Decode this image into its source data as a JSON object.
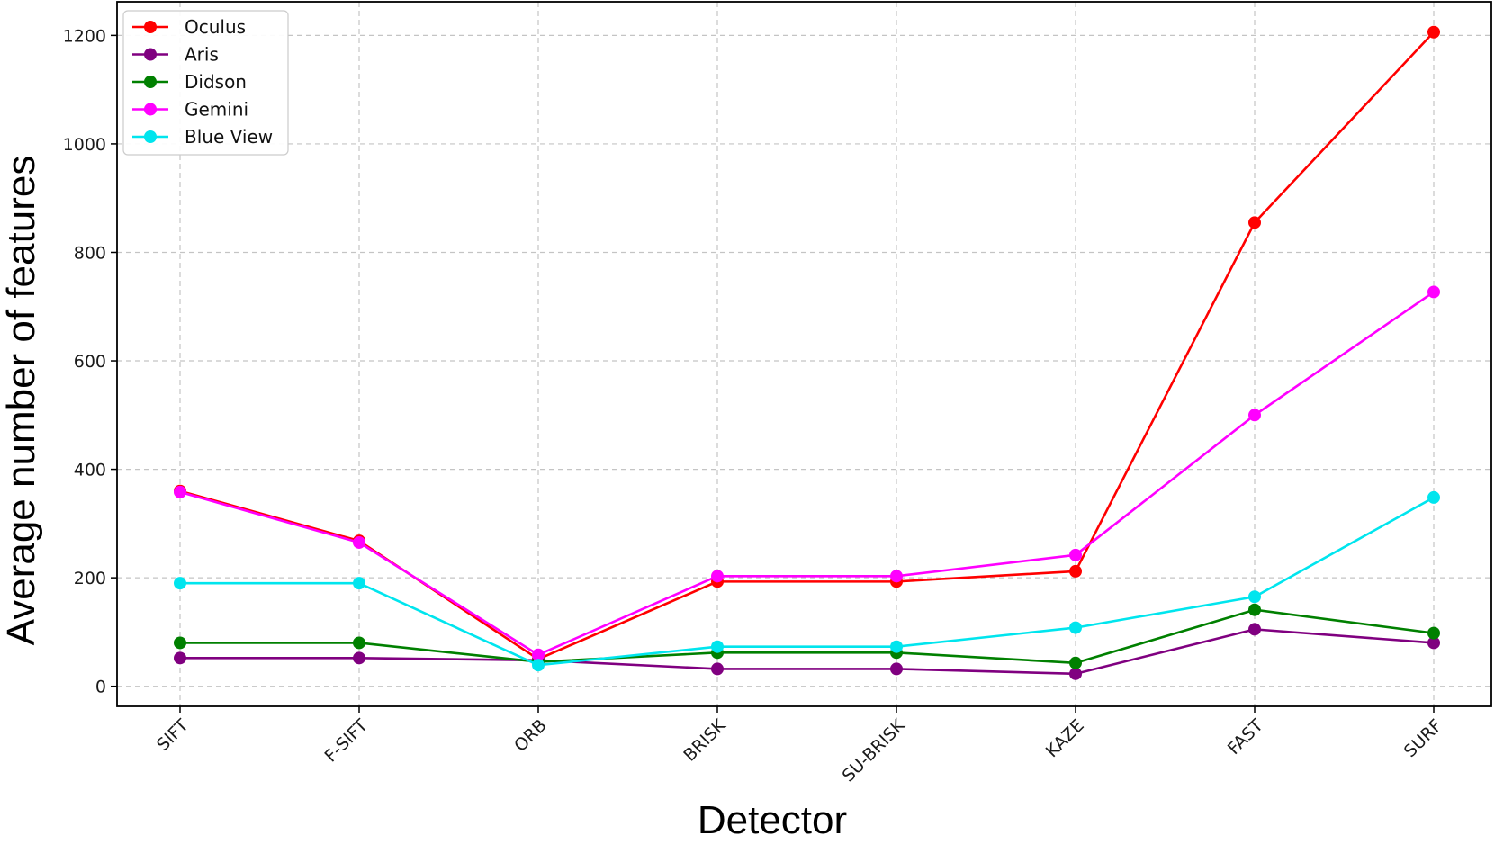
{
  "chart_data": {
    "type": "line",
    "title": "",
    "xlabel": "Detector",
    "ylabel": "Average number of features",
    "categories": [
      "SIFT",
      "F-SIFT",
      "ORB",
      "BRISK",
      "SU-BRISK",
      "KAZE",
      "FAST",
      "SURF"
    ],
    "ylim": [
      -37,
      1262
    ],
    "yticks": [
      0,
      200,
      400,
      600,
      800,
      1000,
      1200
    ],
    "grid": true,
    "legend_position": "top-left",
    "series": [
      {
        "name": "Oculus",
        "color": "#ff0000",
        "values": [
          360,
          268,
          50,
          193,
          193,
          212,
          855,
          1206
        ]
      },
      {
        "name": "Aris",
        "color": "#800080",
        "values": [
          52,
          52,
          48,
          32,
          32,
          23,
          105,
          80
        ]
      },
      {
        "name": "Didson",
        "color": "#008000",
        "values": [
          80,
          80,
          45,
          62,
          62,
          43,
          141,
          98
        ]
      },
      {
        "name": "Gemini",
        "color": "#ff00ff",
        "values": [
          358,
          265,
          58,
          203,
          203,
          242,
          500,
          727
        ]
      },
      {
        "name": "Blue View",
        "color": "#00e5ee",
        "values": [
          190,
          190,
          39,
          73,
          73,
          108,
          165,
          348
        ]
      }
    ]
  }
}
